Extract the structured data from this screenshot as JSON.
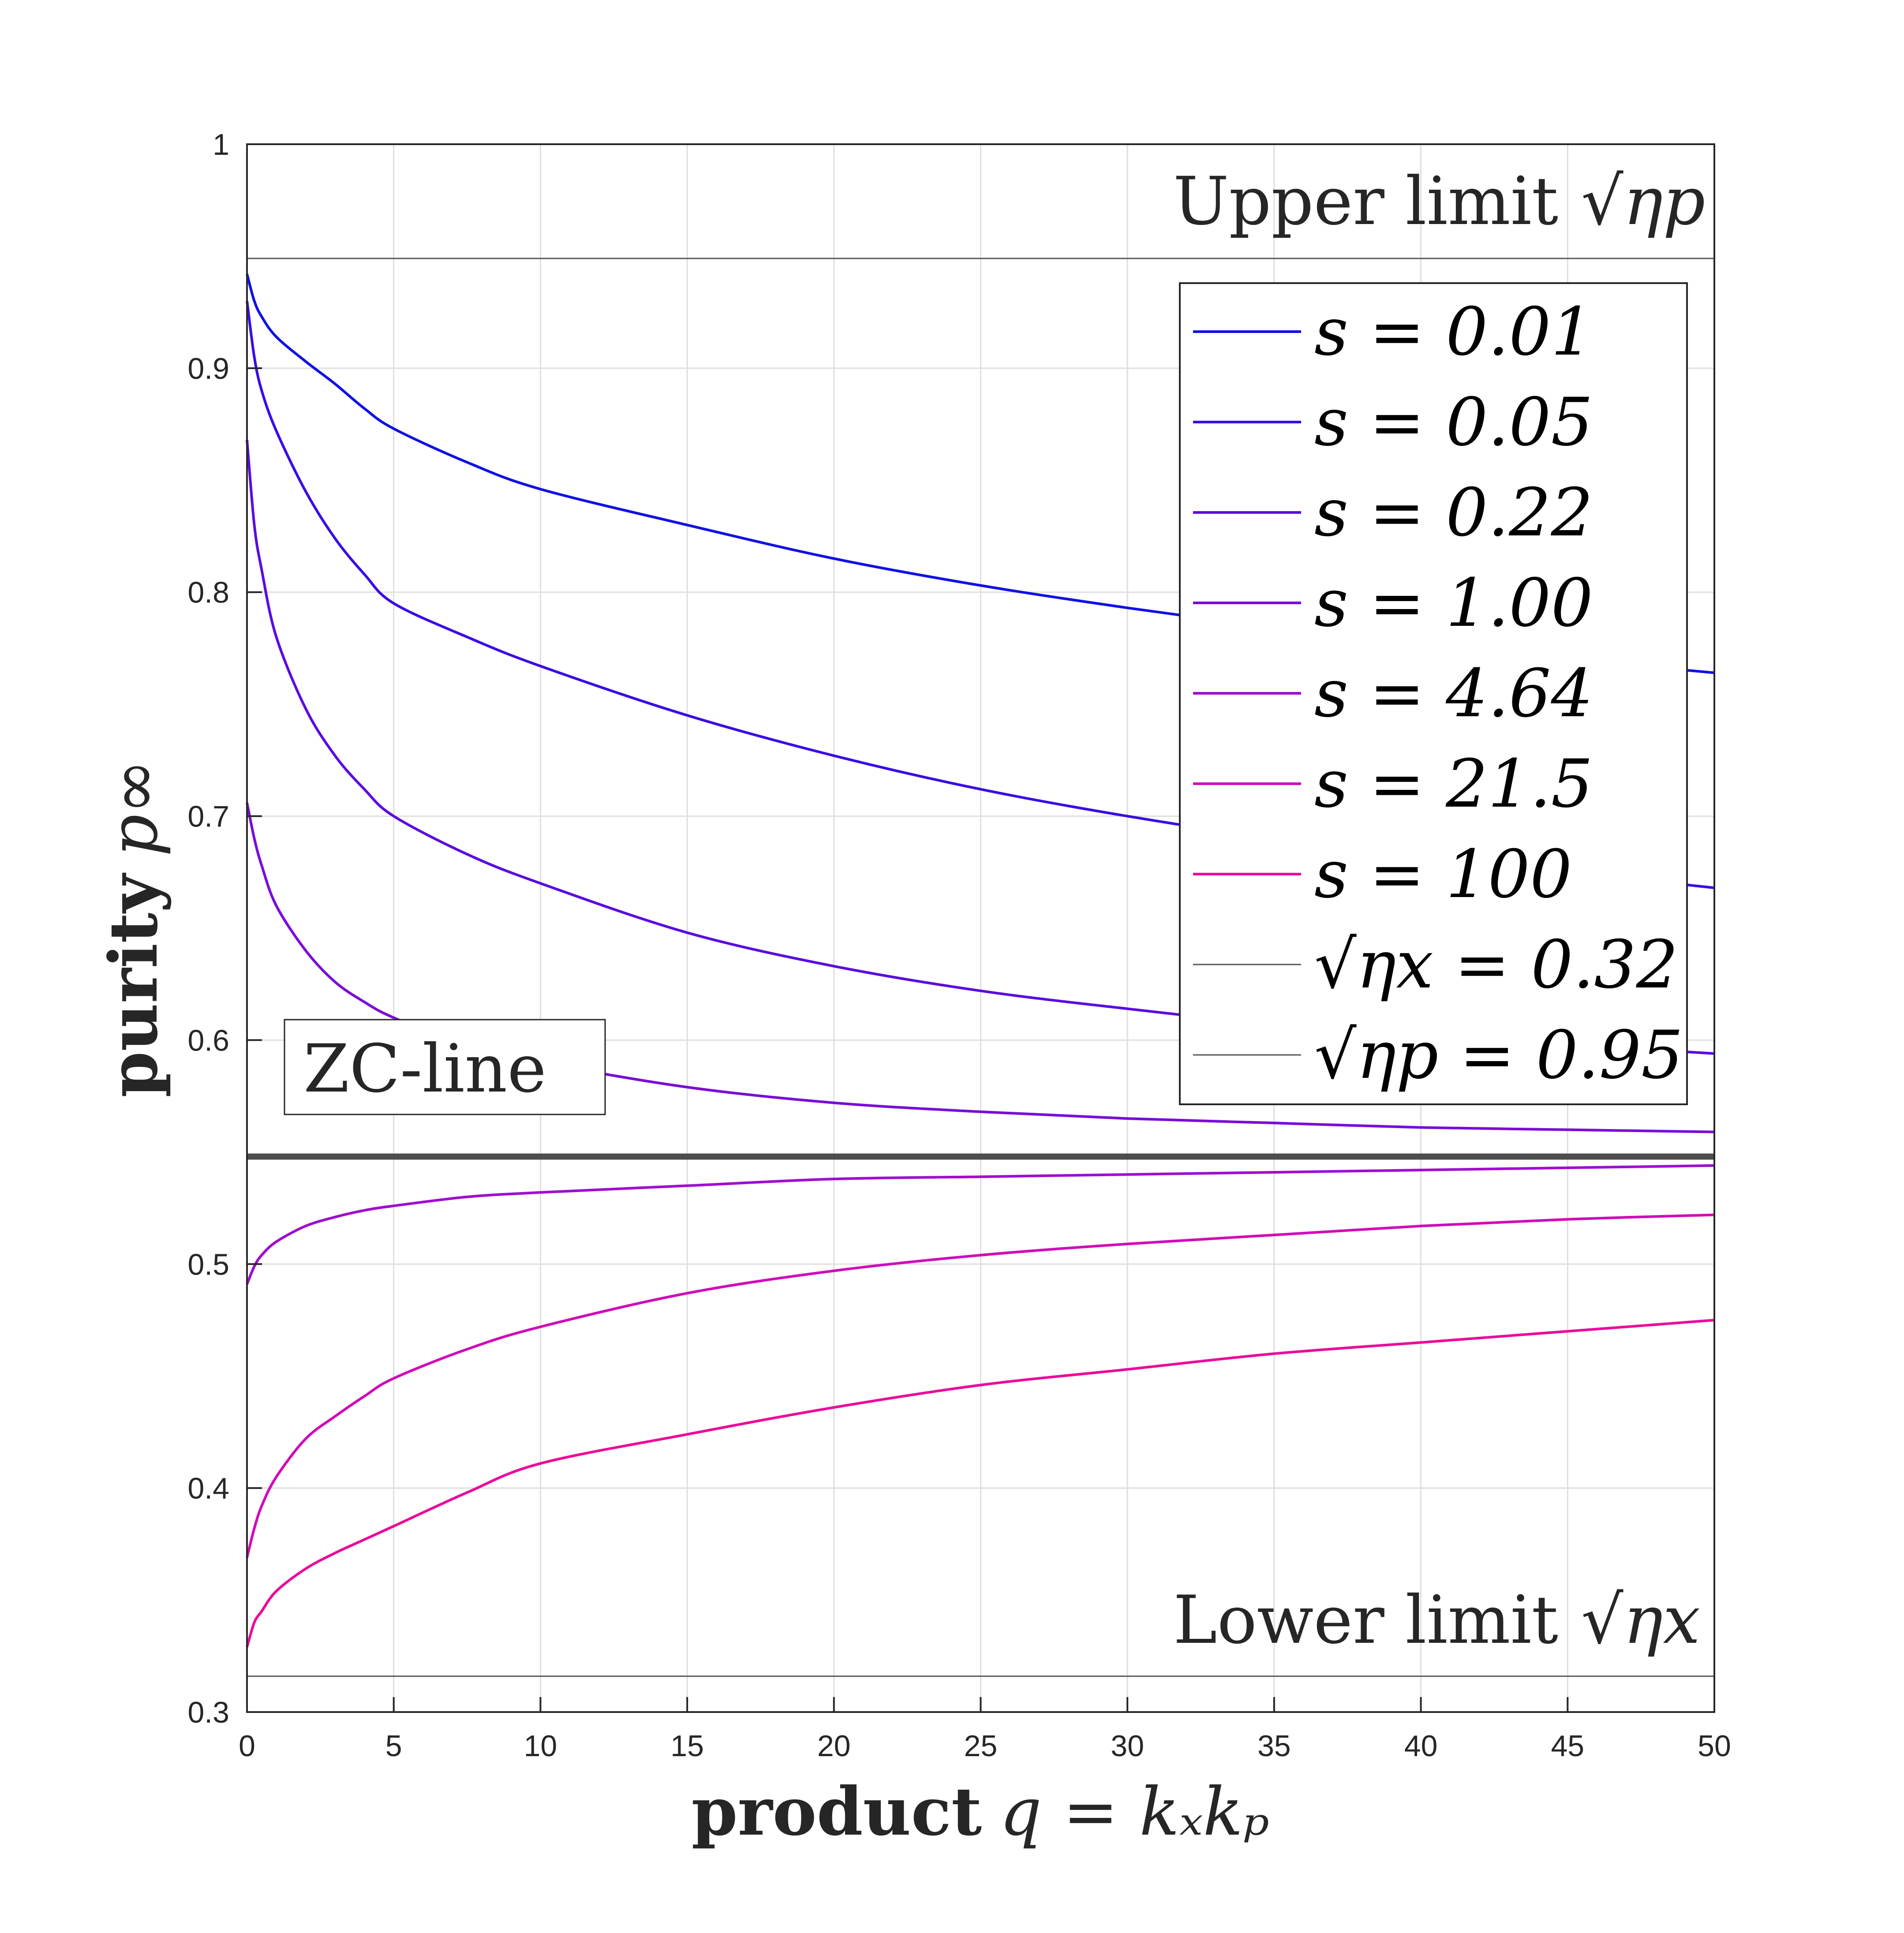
{
  "chart_data": {
    "type": "line",
    "xlabel": {
      "bold": "product",
      "math": "q = kₓkₚ"
    },
    "ylabel": {
      "bold": "purity",
      "math": "p∞"
    },
    "xlim": [
      0,
      50
    ],
    "ylim": [
      0.3,
      1
    ],
    "xticks": [
      0,
      5,
      10,
      15,
      20,
      25,
      30,
      35,
      40,
      45,
      50
    ],
    "yticks": [
      0.3,
      0.4,
      0.5,
      0.6,
      0.7,
      0.8,
      0.9,
      1
    ],
    "grid": true,
    "x": [
      0,
      0.25,
      0.5,
      1,
      2,
      3,
      4,
      5,
      7.5,
      10,
      15,
      20,
      25,
      30,
      35,
      40,
      45,
      50
    ],
    "series": [
      {
        "name": "s = 0.01",
        "color": "#1010e6",
        "values": [
          0.942,
          0.93,
          0.923,
          0.914,
          0.903,
          0.893,
          0.882,
          0.873,
          0.858,
          0.846,
          0.83,
          0.815,
          0.803,
          0.793,
          0.784,
          0.776,
          0.77,
          0.764
        ]
      },
      {
        "name": "s = 0.05",
        "color": "#3a0ce6",
        "values": [
          0.93,
          0.905,
          0.89,
          0.872,
          0.845,
          0.824,
          0.808,
          0.795,
          0.78,
          0.767,
          0.745,
          0.727,
          0.712,
          0.7,
          0.69,
          0.682,
          0.675,
          0.668
        ]
      },
      {
        "name": "s = 0.22",
        "color": "#5a0ce0",
        "values": [
          0.868,
          0.83,
          0.81,
          0.78,
          0.748,
          0.727,
          0.712,
          0.7,
          0.683,
          0.67,
          0.648,
          0.633,
          0.622,
          0.614,
          0.607,
          0.602,
          0.598,
          0.594
        ]
      },
      {
        "name": "s = 1.00",
        "color": "#7a0cd8",
        "values": [
          0.706,
          0.69,
          0.678,
          0.66,
          0.64,
          0.626,
          0.617,
          0.61,
          0.597,
          0.59,
          0.579,
          0.572,
          0.568,
          0.565,
          0.563,
          0.561,
          0.56,
          0.559
        ]
      },
      {
        "name": "s = 4.64",
        "color": "#a00cd0",
        "values": [
          0.491,
          0.499,
          0.504,
          0.51,
          0.517,
          0.521,
          0.524,
          0.526,
          0.53,
          0.532,
          0.535,
          0.538,
          0.539,
          0.54,
          0.541,
          0.542,
          0.543,
          0.544
        ]
      },
      {
        "name": "s = 21.5",
        "color": "#d00cb8",
        "values": [
          0.369,
          0.382,
          0.392,
          0.405,
          0.422,
          0.432,
          0.441,
          0.449,
          0.462,
          0.472,
          0.487,
          0.497,
          0.504,
          0.509,
          0.513,
          0.517,
          0.52,
          0.522
        ]
      },
      {
        "name": "s = 100",
        "color": "#ea0c9a",
        "values": [
          0.329,
          0.34,
          0.345,
          0.354,
          0.364,
          0.371,
          0.377,
          0.383,
          0.398,
          0.411,
          0.424,
          0.436,
          0.446,
          0.453,
          0.46,
          0.465,
          0.47,
          0.475
        ]
      }
    ],
    "reference_lines": [
      {
        "name": "√ηx = 0.32",
        "value": 0.316,
        "color": "#555555"
      },
      {
        "name": "√ηp = 0.95",
        "value": 0.949,
        "color": "#555555"
      }
    ],
    "zc_line": {
      "value": 0.548,
      "color": "#4d4d4d"
    },
    "annotations": {
      "upper_limit": "Upper limit",
      "upper_symbol": "√ηp",
      "lower_limit": "Lower limit",
      "lower_symbol": "√ηx",
      "zc_label": "ZC-line"
    },
    "legend_position": "top-right"
  }
}
